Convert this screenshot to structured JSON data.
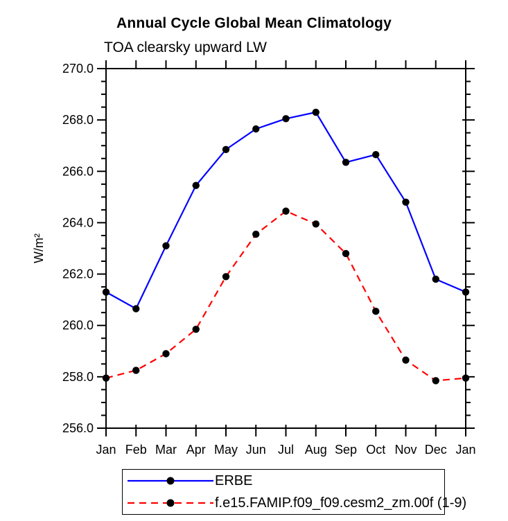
{
  "header": {
    "title": "Annual Cycle Global Mean Climatology",
    "subtitle": "TOA clearsky upward LW"
  },
  "axes": {
    "ylabel": "W/m²",
    "axis_color": "#000000",
    "tick_label_format": "one-decimal"
  },
  "legend": {
    "items": [
      {
        "label": "ERBE",
        "color": "#0000ff",
        "dash": "solid",
        "marker_color": "#000000"
      },
      {
        "label": "f.e15.FAMIP.f09_f09.cesm2_zm.00f (1-9)",
        "color": "#ff0000",
        "dash": "dashed",
        "marker_color": "#000000"
      }
    ]
  },
  "chart_data": {
    "type": "line",
    "title": "Annual Cycle Global Mean Climatology",
    "subtitle": "TOA clearsky upward LW",
    "xlabel": "",
    "ylabel": "W/m²",
    "x": [
      "Jan",
      "Feb",
      "Mar",
      "Apr",
      "May",
      "Jun",
      "Jul",
      "Aug",
      "Sep",
      "Oct",
      "Nov",
      "Dec",
      "Jan"
    ],
    "ylim": [
      256.0,
      270.0
    ],
    "ytick_major": 2.0,
    "ytick_minor": 0.5,
    "grid": false,
    "legend_position": "bottom",
    "series": [
      {
        "name": "ERBE",
        "color": "#0000ff",
        "style": "solid",
        "marker": "circle",
        "marker_color": "#000000",
        "values": [
          261.3,
          260.65,
          263.1,
          265.45,
          266.85,
          267.65,
          268.05,
          268.3,
          266.35,
          266.65,
          264.8,
          261.8,
          261.3
        ]
      },
      {
        "name": "f.e15.FAMIP.f09_f09.cesm2_zm.00f (1-9)",
        "color": "#ff0000",
        "style": "dashed",
        "marker": "circle",
        "marker_color": "#000000",
        "values": [
          257.95,
          258.25,
          258.9,
          259.85,
          261.9,
          263.55,
          264.45,
          263.95,
          262.8,
          260.55,
          258.65,
          257.85,
          257.95
        ]
      }
    ]
  }
}
